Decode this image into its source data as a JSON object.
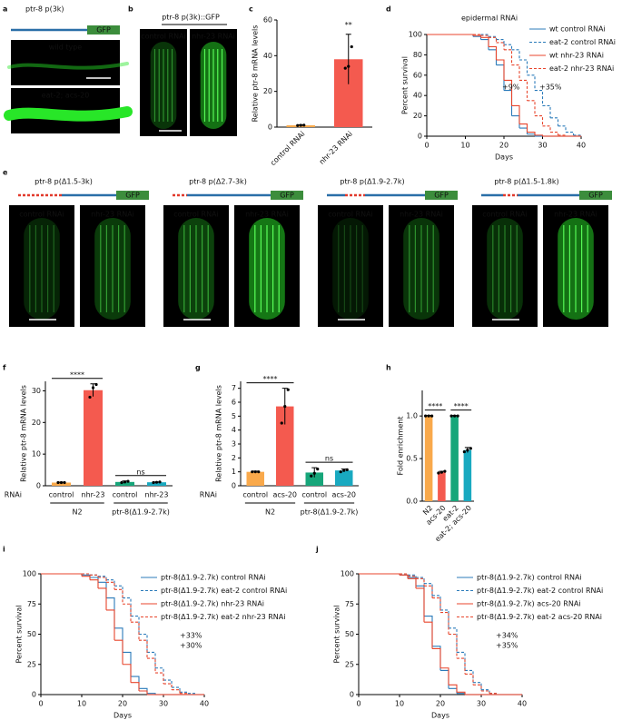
{
  "panels": {
    "a": {
      "label": "a",
      "construct": "ptr-8 p(3k)",
      "reporter": "GFP",
      "images": [
        "wild type",
        "eat-2; acs-20"
      ]
    },
    "b": {
      "label": "b",
      "construct": "ptr-8 p(3k)::GFP",
      "images": [
        "control RNAi",
        "nhr-23 RNAi"
      ]
    },
    "e": {
      "label": "e",
      "constructs": [
        {
          "name": "ptr-8 p(Δ1.5-3k)",
          "reporter": "GFP",
          "images": [
            "control RNAi",
            "nhr-23 RNAi"
          ]
        },
        {
          "name": "ptr-8 p(Δ2.7-3k)",
          "reporter": "GFP",
          "images": [
            "control RNAi",
            "nhr-23 RNAi"
          ]
        },
        {
          "name": "ptr-8 p(Δ1.9-2.7k)",
          "reporter": "GFP",
          "images": [
            "control RNAi",
            "nhr-23 RNAi"
          ]
        },
        {
          "name": "ptr-8 p(Δ1.5-1.8k)",
          "reporter": "GFP",
          "images": [
            "control RNAi",
            "nhr-23 RNAi"
          ]
        }
      ]
    }
  },
  "chart_data": [
    {
      "label": "c",
      "type": "bar",
      "ylabel": "Relative ptr-8 mRNA levels",
      "categories": [
        "control RNAi",
        "nhr-23 RNAi"
      ],
      "values": [
        1,
        38
      ],
      "errors": [
        0.3,
        14
      ],
      "points": [
        [
          0.9,
          1,
          1.1
        ],
        [
          33,
          34,
          45
        ]
      ],
      "colors": [
        "#f9a94b",
        "#f45a4f"
      ],
      "ylim": [
        0,
        60
      ],
      "yticks": [
        0,
        20,
        40,
        60
      ],
      "significance": [
        "**"
      ],
      "rotate_labels": true
    },
    {
      "label": "d",
      "type": "line",
      "step": true,
      "title": "epidermal RNAi",
      "xlabel": "Days",
      "ylabel": "Percent survival",
      "x": [
        0,
        10,
        12,
        14,
        16,
        18,
        20,
        22,
        24,
        26,
        28,
        30,
        32,
        34,
        36,
        38,
        40
      ],
      "series": [
        {
          "name": "wt control RNAi",
          "color": "#2b7bba",
          "dashed": false,
          "values": [
            100,
            100,
            98,
            95,
            85,
            70,
            45,
            20,
            8,
            2,
            0,
            0,
            0,
            0,
            0,
            0,
            0
          ]
        },
        {
          "name": "eat-2 control RNAi",
          "color": "#2b7bba",
          "dashed": true,
          "values": [
            100,
            100,
            100,
            100,
            98,
            95,
            90,
            85,
            75,
            60,
            45,
            30,
            18,
            10,
            4,
            1,
            0
          ]
        },
        {
          "name": "wt nhr-23 RNAi",
          "color": "#e8452c",
          "dashed": false,
          "values": [
            100,
            100,
            99,
            97,
            88,
            75,
            55,
            30,
            12,
            4,
            1,
            0,
            0,
            0,
            0,
            0,
            0
          ]
        },
        {
          "name": "eat-2 nhr-23 RNAi",
          "color": "#e8452c",
          "dashed": true,
          "values": [
            100,
            100,
            100,
            99,
            97,
            92,
            85,
            70,
            55,
            35,
            20,
            10,
            4,
            1,
            0,
            0,
            0
          ]
        }
      ],
      "xlim": [
        0,
        40
      ],
      "ylim": [
        0,
        100
      ],
      "xticks": [
        0,
        10,
        20,
        30,
        40
      ],
      "yticks": [
        0,
        20,
        40,
        60,
        80,
        100
      ],
      "annotations": [
        {
          "text": "+9%",
          "color": "#e8452c"
        },
        {
          "text": "+35%",
          "color": "#2b7bba"
        }
      ]
    },
    {
      "label": "f",
      "type": "bar",
      "ylabel": "Relative ptr-8 mRNA levels",
      "row_label": "RNAi",
      "categories": [
        "control",
        "nhr-23",
        "control",
        "nhr-23"
      ],
      "groups": [
        "N2",
        "ptr-8(Δ1.9-2.7k)"
      ],
      "values": [
        1,
        30.2,
        1.2,
        1.1
      ],
      "errors": [
        0.1,
        2,
        0.3,
        0.1
      ],
      "points": [
        [
          1,
          1,
          1
        ],
        [
          28,
          31,
          32
        ],
        [
          1,
          1.2,
          1.4
        ],
        [
          1,
          1.1,
          1.2
        ]
      ],
      "colors": [
        "#f9a94b",
        "#f45a4f",
        "#17a67a",
        "#19a9c0"
      ],
      "ylim": [
        0,
        33
      ],
      "yticks": [
        0,
        10,
        20,
        30
      ],
      "significance": [
        "****",
        "ns"
      ],
      "rotate_labels": false
    },
    {
      "label": "g",
      "type": "bar",
      "ylabel": "Relative ptr-8 mRNA levels",
      "row_label": "RNAi",
      "categories": [
        "control",
        "acs-20",
        "control",
        "acs-20"
      ],
      "groups": [
        "N2",
        "ptr-8(Δ1.9-2.7k)"
      ],
      "values": [
        1,
        5.7,
        0.95,
        1.1
      ],
      "errors": [
        0.05,
        1.3,
        0.35,
        0.1
      ],
      "points": [
        [
          1,
          1,
          1
        ],
        [
          4.5,
          5.7,
          6.9
        ],
        [
          0.7,
          0.9,
          1.2
        ],
        [
          1,
          1.1,
          1.15
        ]
      ],
      "colors": [
        "#f9a94b",
        "#f45a4f",
        "#17a67a",
        "#19a9c0"
      ],
      "ylim": [
        0,
        7.5
      ],
      "yticks": [
        0,
        1,
        2,
        3,
        4,
        5,
        6,
        7
      ],
      "significance": [
        "****",
        "ns"
      ],
      "rotate_labels": false
    },
    {
      "label": "h",
      "type": "bar",
      "ylabel": "Fold enrichment",
      "categories": [
        "N2",
        "acs-20",
        "eat-2",
        "eat-2; acs-20"
      ],
      "values": [
        1,
        0.34,
        1,
        0.6
      ],
      "errors": [
        0.005,
        0.01,
        0.005,
        0.03
      ],
      "points": [
        [
          1,
          1,
          1
        ],
        [
          0.33,
          0.34,
          0.35
        ],
        [
          1,
          1,
          1
        ],
        [
          0.58,
          0.6,
          0.62
        ]
      ],
      "colors": [
        "#f9a94b",
        "#f45a4f",
        "#17a67a",
        "#19a9c0"
      ],
      "ylim": [
        0,
        1.3
      ],
      "yticks": [
        {
          "value": 0,
          "label": "0.0"
        },
        0.5,
        {
          "value": 1,
          "label": "1.0"
        }
      ],
      "significance": [
        "****",
        "****"
      ],
      "rotate_labels": true
    },
    {
      "label": "i",
      "type": "line",
      "step": true,
      "xlabel": "Days",
      "ylabel": "Percent survival",
      "x": [
        0,
        8,
        10,
        12,
        14,
        16,
        18,
        20,
        22,
        24,
        26,
        28,
        30,
        32,
        34,
        36,
        38,
        40
      ],
      "series": [
        {
          "name": "ptr-8(Δ1.9-2.7k) control RNAi",
          "color": "#2b7bba",
          "dashed": false,
          "values": [
            100,
            100,
            99,
            97,
            93,
            80,
            55,
            35,
            15,
            5,
            1,
            0,
            0,
            0,
            0,
            0,
            0,
            0
          ]
        },
        {
          "name": "ptr-8(Δ1.9-2.7k) eat-2 control RNAi",
          "color": "#2b7bba",
          "dashed": true,
          "values": [
            100,
            100,
            100,
            99,
            98,
            95,
            90,
            80,
            65,
            50,
            35,
            22,
            12,
            6,
            2,
            1,
            0,
            0
          ]
        },
        {
          "name": "ptr-8(Δ1.9-2.7k) nhr-23 RNAi",
          "color": "#e8452c",
          "dashed": false,
          "values": [
            100,
            100,
            98,
            95,
            88,
            70,
            45,
            25,
            10,
            3,
            0,
            0,
            0,
            0,
            0,
            0,
            0,
            0
          ]
        },
        {
          "name": "ptr-8(Δ1.9-2.7k) eat-2 nhr-23 RNAi",
          "color": "#e8452c",
          "dashed": true,
          "values": [
            100,
            100,
            100,
            99,
            97,
            93,
            87,
            75,
            60,
            45,
            30,
            18,
            9,
            4,
            1,
            0,
            0,
            0
          ]
        }
      ],
      "xlim": [
        0,
        40
      ],
      "ylim": [
        0,
        100
      ],
      "xticks": [
        0,
        10,
        20,
        30,
        40
      ],
      "yticks": [
        0,
        25,
        50,
        75,
        100
      ],
      "annotations": [
        {
          "text": "+33%",
          "color": "#2b7bba"
        },
        {
          "text": "+30%",
          "color": "#e8452c"
        }
      ]
    },
    {
      "label": "j",
      "type": "line",
      "step": true,
      "xlabel": "Days",
      "ylabel": "Percent survival",
      "x": [
        0,
        8,
        10,
        12,
        14,
        16,
        18,
        20,
        22,
        24,
        26,
        28,
        30,
        32,
        34,
        36,
        38,
        40
      ],
      "series": [
        {
          "name": "ptr-8(Δ1.9-2.7k) control RNAi",
          "color": "#2b7bba",
          "dashed": false,
          "values": [
            100,
            100,
            99,
            97,
            90,
            65,
            40,
            20,
            5,
            1,
            0,
            0,
            0,
            0,
            0,
            0,
            0,
            0
          ]
        },
        {
          "name": "ptr-8(Δ1.9-2.7k) eat-2 control RNAi",
          "color": "#2b7bba",
          "dashed": true,
          "values": [
            100,
            100,
            100,
            99,
            97,
            92,
            82,
            70,
            55,
            35,
            20,
            10,
            4,
            1,
            0,
            0,
            0,
            0
          ]
        },
        {
          "name": "ptr-8(Δ1.9-2.7k) acs-20 RNAi",
          "color": "#e8452c",
          "dashed": false,
          "values": [
            100,
            100,
            99,
            96,
            88,
            60,
            38,
            22,
            8,
            2,
            0,
            0,
            0,
            0,
            0,
            0,
            0,
            0
          ]
        },
        {
          "name": "ptr-8(Δ1.9-2.7k) eat-2 acs-20 RNAi",
          "color": "#e8452c",
          "dashed": true,
          "values": [
            100,
            100,
            100,
            98,
            96,
            90,
            80,
            68,
            50,
            30,
            17,
            8,
            3,
            1,
            0,
            0,
            0,
            0
          ]
        }
      ],
      "xlim": [
        0,
        40
      ],
      "ylim": [
        0,
        100
      ],
      "xticks": [
        0,
        10,
        20,
        30,
        40
      ],
      "yticks": [
        0,
        25,
        50,
        75,
        100
      ],
      "annotations": [
        {
          "text": "+34%",
          "color": "#2b7bba"
        },
        {
          "text": "+35%",
          "color": "#e8452c"
        }
      ]
    }
  ]
}
